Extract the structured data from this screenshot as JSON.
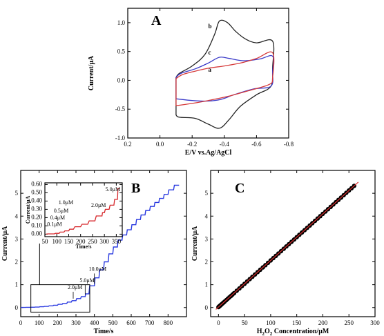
{
  "chart_data": [
    {
      "type": "line",
      "panel": "A",
      "xlabel": "E/V vs.Ag/AgCl",
      "ylabel": "Current/μA",
      "xlim": [
        0.2,
        -0.8
      ],
      "ylim": [
        -1.0,
        1.25
      ],
      "xticks": [
        0.2,
        0.0,
        -0.2,
        -0.4,
        -0.6,
        -0.8
      ],
      "xticklabels": [
        "0.2",
        "0.0",
        "-0.2",
        "-0.4",
        "-0.6",
        "-0.8"
      ],
      "yticks": [
        -1.0,
        -0.5,
        0.0,
        0.5,
        1.0
      ],
      "yticklabels": [
        "-1.0",
        "-0.5",
        "0.0",
        "0.5",
        "1.0"
      ],
      "series": [
        {
          "name": "b",
          "color": "#222222",
          "upper": [
            [
              -0.1,
              0.05
            ],
            [
              -0.12,
              0.12
            ],
            [
              -0.2,
              0.25
            ],
            [
              -0.28,
              0.45
            ],
            [
              -0.34,
              0.8
            ],
            [
              -0.37,
              1.03
            ],
            [
              -0.42,
              1.0
            ],
            [
              -0.47,
              0.85
            ],
            [
              -0.53,
              0.72
            ],
            [
              -0.6,
              0.65
            ],
            [
              -0.7,
              0.68
            ]
          ],
          "lower": [
            [
              -0.7,
              0.22
            ],
            [
              -0.69,
              -0.1
            ],
            [
              -0.6,
              -0.25
            ],
            [
              -0.5,
              -0.45
            ],
            [
              -0.43,
              -0.68
            ],
            [
              -0.37,
              -0.83
            ],
            [
              -0.3,
              -0.76
            ],
            [
              -0.22,
              -0.66
            ],
            [
              -0.12,
              -0.64
            ],
            [
              -0.1,
              -0.6
            ]
          ]
        },
        {
          "name": "c",
          "color": "#3a3ac8",
          "upper": [
            [
              -0.1,
              0.05
            ],
            [
              -0.13,
              0.12
            ],
            [
              -0.22,
              0.2
            ],
            [
              -0.3,
              0.3
            ],
            [
              -0.37,
              0.4
            ],
            [
              -0.43,
              0.38
            ],
            [
              -0.52,
              0.34
            ],
            [
              -0.62,
              0.37
            ],
            [
              -0.7,
              0.42
            ]
          ],
          "lower": [
            [
              -0.7,
              0.15
            ],
            [
              -0.69,
              -0.1
            ],
            [
              -0.58,
              -0.15
            ],
            [
              -0.46,
              -0.25
            ],
            [
              -0.38,
              -0.33
            ],
            [
              -0.3,
              -0.36
            ],
            [
              -0.2,
              -0.35
            ],
            [
              -0.1,
              -0.32
            ]
          ]
        },
        {
          "name": "a",
          "color": "#d63a3a",
          "upper": [
            [
              -0.1,
              0.03
            ],
            [
              -0.14,
              0.1
            ],
            [
              -0.22,
              0.16
            ],
            [
              -0.3,
              0.21
            ],
            [
              -0.4,
              0.25
            ],
            [
              -0.5,
              0.3
            ],
            [
              -0.6,
              0.38
            ],
            [
              -0.7,
              0.48
            ]
          ],
          "lower": [
            [
              -0.7,
              0.05
            ],
            [
              -0.68,
              -0.07
            ],
            [
              -0.55,
              -0.18
            ],
            [
              -0.42,
              -0.28
            ],
            [
              -0.3,
              -0.35
            ],
            [
              -0.2,
              -0.4
            ],
            [
              -0.1,
              -0.44
            ]
          ]
        }
      ],
      "panel_label": "A"
    },
    {
      "type": "line",
      "panel": "B",
      "xlabel": "Time/s",
      "ylabel": "Current/μA",
      "xlim": [
        0,
        900
      ],
      "ylim": [
        -0.4,
        6
      ],
      "xticks": [
        0,
        100,
        200,
        300,
        400,
        500,
        600,
        700,
        800
      ],
      "xticklabels": [
        "0",
        "100",
        "200",
        "300",
        "400",
        "500",
        "600",
        "700",
        "800"
      ],
      "yticks": [
        0,
        1,
        2,
        3,
        4,
        5
      ],
      "yticklabels": [
        "0",
        "1",
        "2",
        "3",
        "4",
        "5"
      ],
      "series": [
        {
          "name": "",
          "color": "#2a3ae0",
          "points": [
            [
              0,
              0
            ],
            [
              100,
              0.02
            ],
            [
              150,
              0.05
            ],
            [
              200,
              0.1
            ],
            [
              250,
              0.18
            ],
            [
              300,
              0.3
            ],
            [
              350,
              0.48
            ],
            [
              370,
              0.6
            ],
            [
              400,
              0.95
            ],
            [
              450,
              1.65
            ],
            [
              500,
              2.35
            ],
            [
              550,
              2.95
            ],
            [
              600,
              3.4
            ],
            [
              650,
              3.85
            ],
            [
              700,
              4.25
            ],
            [
              750,
              4.6
            ],
            [
              800,
              4.95
            ],
            [
              860,
              5.35
            ]
          ]
        }
      ],
      "annotations": [
        {
          "text": "10.0μM",
          "x": 400,
          "y": 1.55
        },
        {
          "text": "5.0μM",
          "x": 350,
          "y": 1.05
        },
        {
          "text": "2.0μM",
          "x": 285,
          "y": 0.75
        }
      ],
      "inset": {
        "xlabel": "Time/s",
        "ylabel": "Current/μA",
        "xlim": [
          50,
          375
        ],
        "ylim": [
          -0.03,
          0.62
        ],
        "xticks": [
          50,
          100,
          150,
          200,
          250,
          300,
          350
        ],
        "xticklabels": [
          "50",
          "100",
          "150",
          "200",
          "250",
          "300",
          "350"
        ],
        "yticks": [
          0.0,
          0.1,
          0.2,
          0.3,
          0.4,
          0.5,
          0.6
        ],
        "yticklabels": [
          "0.00",
          "0.10",
          "0.20",
          "0.30",
          "0.40",
          "0.50",
          "0.60"
        ],
        "color": "#d6262a",
        "points": [
          [
            55,
            0
          ],
          [
            90,
            0.003
          ],
          [
            110,
            0.01
          ],
          [
            130,
            0.025
          ],
          [
            150,
            0.04
          ],
          [
            170,
            0.06
          ],
          [
            200,
            0.09
          ],
          [
            230,
            0.12
          ],
          [
            260,
            0.16
          ],
          [
            290,
            0.22
          ],
          [
            300,
            0.26
          ],
          [
            320,
            0.3
          ],
          [
            340,
            0.35
          ],
          [
            355,
            0.42
          ],
          [
            365,
            0.55
          ]
        ],
        "annotations": [
          {
            "text": "0.1μM",
            "x": 100,
            "y": 0.1
          },
          {
            "text": "0.4μM",
            "x": 113,
            "y": 0.18
          },
          {
            "text": "0.5μM",
            "x": 128,
            "y": 0.26
          },
          {
            "text": "1.0μM",
            "x": 148,
            "y": 0.36
          },
          {
            "text": "2.0μM",
            "x": 285,
            "y": 0.33
          },
          {
            "text": "5.0μM",
            "x": 345,
            "y": 0.52
          }
        ]
      },
      "panel_label": "B"
    },
    {
      "type": "scatter",
      "panel": "C",
      "xlabel": "H₂O₂ Concentration/μM",
      "xlabel_main": "H",
      "xlabel_sub1": "2",
      "xlabel_mid": "O",
      "xlabel_sub2": "2",
      "xlabel_rest": " Concentration/μM",
      "ylabel": "Current/μA",
      "xlim": [
        -15,
        300
      ],
      "ylim": [
        -0.4,
        6
      ],
      "xticks": [
        0,
        50,
        100,
        150,
        200,
        250,
        300
      ],
      "xticklabels": [
        "0",
        "50",
        "100",
        "150",
        "200",
        "250",
        "300"
      ],
      "yticks": [
        0,
        1,
        2,
        3,
        4,
        5
      ],
      "yticklabels": [
        "0",
        "1",
        "2",
        "3",
        "4",
        "5"
      ],
      "points_x": [
        0,
        1,
        2,
        3,
        4,
        5,
        6,
        8,
        10,
        12,
        15,
        18,
        21,
        24,
        27,
        30,
        35,
        40,
        45,
        50,
        55,
        60,
        65,
        70,
        75,
        80,
        85,
        90,
        95,
        100,
        105,
        110,
        115,
        120,
        125,
        130,
        135,
        140,
        145,
        150,
        155,
        160,
        165,
        170,
        175,
        180,
        185,
        190,
        195,
        200,
        205,
        210,
        215,
        220,
        225,
        230,
        235,
        240,
        245,
        250,
        255,
        260
      ],
      "slope": 0.0204,
      "intercept": 0.02,
      "fit_x": [
        -5,
        268
      ],
      "point_color": "#000000",
      "fit_color": "#e03030",
      "panel_label": "C"
    }
  ]
}
